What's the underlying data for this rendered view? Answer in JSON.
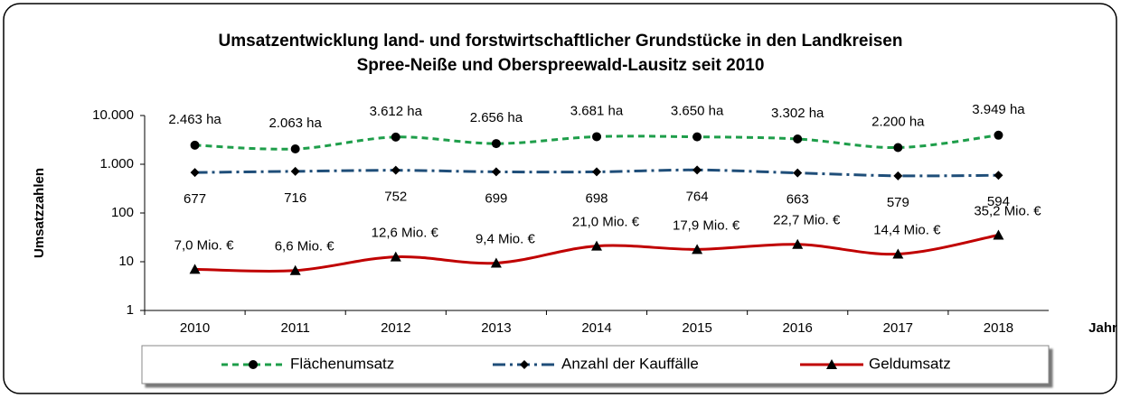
{
  "chart_data": {
    "type": "line",
    "title": "Umsatzentwicklung land- und forstwirtschaftlicher Grundstücke in den Landkreisen",
    "subtitle": "Spree-Neiße und Oberspreewald-Lausitz seit 2010",
    "y_label": "Umsatzzahlen",
    "x_label": "Jahr",
    "categories": [
      "2010",
      "2011",
      "2012",
      "2013",
      "2014",
      "2015",
      "2016",
      "2017",
      "2018"
    ],
    "log_scale": true,
    "ylim": [
      1,
      10000
    ],
    "yticks": [
      1,
      10,
      100,
      {
        "value": 1000,
        "label": "1.000"
      },
      {
        "value": 10000,
        "label": "10.000"
      }
    ],
    "legend": "bottom",
    "series": [
      {
        "name": "Flächenumsatz",
        "color": "#1e9e4a",
        "marker": "circle",
        "dash": "dashed",
        "values": [
          2463,
          2063,
          3612,
          2656,
          3681,
          3650,
          3302,
          2200,
          3949
        ],
        "value_labels": [
          "2.463 ha",
          "2.063 ha",
          "3.612 ha",
          "2.656 ha",
          "3.681 ha",
          "3.650 ha",
          "3.302 ha",
          "2.200 ha",
          "3.949 ha"
        ]
      },
      {
        "name": "Anzahl der Kauffälle",
        "color": "#1f4e79",
        "marker": "diamond",
        "dash": "dashdot",
        "values": [
          677,
          716,
          752,
          699,
          698,
          764,
          663,
          579,
          594
        ]
      },
      {
        "name": "Geldumsatz",
        "color": "#c00000",
        "marker": "triangle",
        "dash": "solid",
        "values": [
          7.0,
          6.6,
          12.6,
          9.4,
          21.0,
          17.9,
          22.7,
          14.4,
          35.2
        ],
        "value_labels": [
          "7,0 Mio. €",
          "6,6 Mio. €",
          "12,6 Mio. €",
          "9,4 Mio. €",
          "21,0 Mio. €",
          "17,9 Mio. €",
          "22,7 Mio. €",
          "14,4 Mio. €",
          "35,2 Mio. €"
        ]
      }
    ]
  }
}
